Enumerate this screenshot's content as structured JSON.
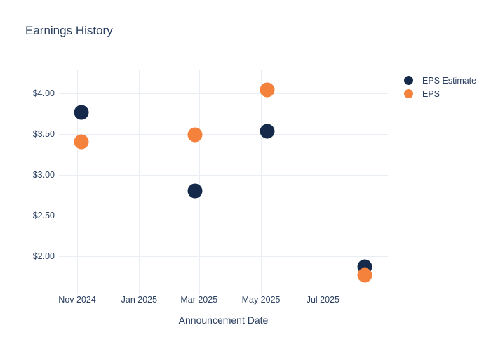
{
  "chart": {
    "title": "Earnings History",
    "xlabel": "Announcement Date"
  },
  "colors": {
    "background": "#ffffff",
    "grid": "#e9eef5",
    "text": "#2a3f5f",
    "eps_estimate": "#152a4b",
    "eps": "#f4823c"
  },
  "chart_data": {
    "type": "scatter",
    "title": "Earnings History",
    "xlabel": "Announcement Date",
    "ylabel": "",
    "grid": true,
    "legend_position": "top-right-outside",
    "marker_size_px": 21,
    "x_dates": [
      "2024-11-05",
      "2025-02-25",
      "2025-05-07",
      "2025-08-11"
    ],
    "series": [
      {
        "name": "EPS Estimate",
        "color": "#152a4b",
        "values": [
          3.77,
          2.8,
          3.53,
          1.87
        ]
      },
      {
        "name": "EPS",
        "color": "#f4823c",
        "values": [
          3.4,
          3.49,
          4.04,
          1.76
        ]
      }
    ],
    "x_ticks": [
      {
        "date": "2024-11-01",
        "label": "Nov 2024"
      },
      {
        "date": "2025-01-01",
        "label": "Jan 2025"
      },
      {
        "date": "2025-03-01",
        "label": "Mar 2025"
      },
      {
        "date": "2025-05-01",
        "label": "May 2025"
      },
      {
        "date": "2025-07-01",
        "label": "Jul 2025"
      }
    ],
    "y_ticks": [
      {
        "value": 2.0,
        "label": "$2.00"
      },
      {
        "value": 2.5,
        "label": "$2.50"
      },
      {
        "value": 3.0,
        "label": "$3.00"
      },
      {
        "value": 3.5,
        "label": "$3.50"
      },
      {
        "value": 4.0,
        "label": "$4.00"
      }
    ],
    "x_range": [
      "2024-10-14",
      "2025-09-03"
    ],
    "y_range": [
      1.565,
      4.285
    ]
  }
}
